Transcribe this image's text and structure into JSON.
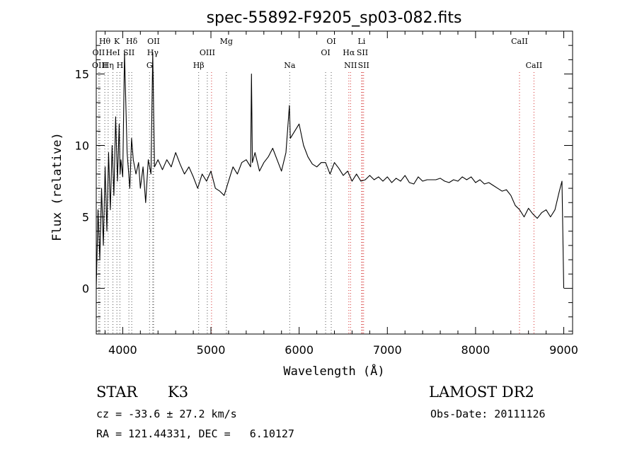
{
  "chart_data": {
    "type": "line",
    "title": "spec-55892-F9205_sp03-082.fits",
    "xlabel": "Wavelength (Å)",
    "ylabel": "Flux (relative)",
    "xlim": [
      3700,
      9100
    ],
    "ylim": [
      -3.2,
      18.0
    ],
    "xticks": [
      4000,
      5000,
      6000,
      7000,
      8000,
      9000
    ],
    "yticks": [
      0,
      5,
      10,
      15
    ],
    "grid": false,
    "series": [
      {
        "x": [
          3700,
          3720,
          3740,
          3760,
          3780,
          3800,
          3820,
          3840,
          3860,
          3880,
          3900,
          3920,
          3940,
          3960,
          3970,
          3980,
          4000,
          4020,
          4050,
          4080,
          4100,
          4120,
          4150,
          4180,
          4200,
          4230,
          4260,
          4290,
          4320,
          4340,
          4360,
          4400,
          4450,
          4500,
          4550,
          4600,
          4650,
          4700,
          4750,
          4800,
          4850,
          4900,
          4950,
          5000,
          5050,
          5100,
          5150,
          5200,
          5250,
          5300,
          5350,
          5400,
          5450,
          5460,
          5470,
          5500,
          5550,
          5600,
          5650,
          5700,
          5750,
          5800,
          5850,
          5890,
          5900,
          5950,
          6000,
          6050,
          6100,
          6150,
          6200,
          6250,
          6300,
          6350,
          6400,
          6450,
          6500,
          6550,
          6600,
          6650,
          6700,
          6750,
          6800,
          6850,
          6900,
          6950,
          7000,
          7050,
          7100,
          7150,
          7200,
          7250,
          7300,
          7350,
          7400,
          7450,
          7500,
          7550,
          7600,
          7650,
          7700,
          7750,
          7800,
          7850,
          7900,
          7950,
          8000,
          8050,
          8100,
          8150,
          8200,
          8250,
          8300,
          8350,
          8400,
          8450,
          8500,
          8550,
          8600,
          8650,
          8700,
          8750,
          8800,
          8850,
          8900,
          8950,
          8980,
          9000
        ],
        "y": [
          0.0,
          5.5,
          2.0,
          7.0,
          3.0,
          8.5,
          4.0,
          9.5,
          5.5,
          10.0,
          6.5,
          12.0,
          7.5,
          11.5,
          8.0,
          9.0,
          7.8,
          16.5,
          9.5,
          7.0,
          10.5,
          9.0,
          8.0,
          8.8,
          7.0,
          8.5,
          6.0,
          9.0,
          8.0,
          16.5,
          8.5,
          9.0,
          8.3,
          9.0,
          8.5,
          9.5,
          8.7,
          8.0,
          8.5,
          7.8,
          7.0,
          8.0,
          7.5,
          8.2,
          7.0,
          6.8,
          6.5,
          7.5,
          8.5,
          8.0,
          8.8,
          9.0,
          8.5,
          15.0,
          8.8,
          9.5,
          8.2,
          8.8,
          9.2,
          9.8,
          9.0,
          8.2,
          9.5,
          12.8,
          10.5,
          11.0,
          11.5,
          10.0,
          9.2,
          8.7,
          8.5,
          8.8,
          8.8,
          8.0,
          8.8,
          8.4,
          7.9,
          8.2,
          7.5,
          8.0,
          7.5,
          7.6,
          7.9,
          7.6,
          7.8,
          7.5,
          7.8,
          7.4,
          7.7,
          7.5,
          7.9,
          7.4,
          7.3,
          7.8,
          7.5,
          7.6,
          7.6,
          7.6,
          7.7,
          7.5,
          7.4,
          7.6,
          7.5,
          7.8,
          7.6,
          7.8,
          7.4,
          7.6,
          7.3,
          7.4,
          7.2,
          7.0,
          6.8,
          6.9,
          6.5,
          5.8,
          5.5,
          5.0,
          5.6,
          5.2,
          4.9,
          5.3,
          5.5,
          5.0,
          5.5,
          6.8,
          7.5,
          0.0
        ]
      }
    ],
    "annotations": [
      {
        "label": "Hθ",
        "x": 3797,
        "row": 1
      },
      {
        "label": "K",
        "x": 3934,
        "row": 1
      },
      {
        "label": "Hδ",
        "x": 4102,
        "row": 1
      },
      {
        "label": "OII",
        "x": 4350,
        "row": 1
      },
      {
        "label": "Mg",
        "x": 5175,
        "row": 1
      },
      {
        "label": "OI",
        "x": 6364,
        "row": 1
      },
      {
        "label": "Li",
        "x": 6708,
        "row": 1
      },
      {
        "label": "CaII",
        "x": 8498,
        "row": 1
      },
      {
        "label": "OII",
        "x": 3727,
        "row": 2
      },
      {
        "label": "HeI",
        "x": 3889,
        "row": 2
      },
      {
        "label": "SII",
        "x": 4070,
        "row": 2
      },
      {
        "label": "Hγ",
        "x": 4341,
        "row": 2
      },
      {
        "label": "OIII",
        "x": 4959,
        "row": 2
      },
      {
        "label": "OI",
        "x": 6300,
        "row": 2
      },
      {
        "label": "Hα",
        "x": 6563,
        "row": 2
      },
      {
        "label": "SII",
        "x": 6717,
        "row": 2
      },
      {
        "label": "OIII",
        "x": 3740,
        "row": 3
      },
      {
        "label": "Hη",
        "x": 3835,
        "row": 3
      },
      {
        "label": "H",
        "x": 3968,
        "row": 3
      },
      {
        "label": "G",
        "x": 4304,
        "row": 3
      },
      {
        "label": "Hβ",
        "x": 4861,
        "row": 3
      },
      {
        "label": "Na",
        "x": 5893,
        "row": 3
      },
      {
        "label": "NII",
        "x": 6583,
        "row": 3
      },
      {
        "label": "SII",
        "x": 6731,
        "row": 3
      },
      {
        "label": "CaII",
        "x": 8662,
        "row": 3
      }
    ],
    "lines_dark": [
      3727,
      3740,
      3797,
      3835,
      3889,
      3934,
      3968,
      4070,
      4102,
      4304,
      4341,
      4350,
      4861,
      4959,
      5175,
      5893,
      6300,
      6364
    ],
    "lines_red": [
      5007,
      6563,
      6583,
      6708,
      6717,
      6731,
      8498,
      8662
    ],
    "colors": {
      "axis": "#000000",
      "spectrum": "#000000",
      "emission_line": "#d43030",
      "absorption_line": "#555555"
    }
  },
  "info": {
    "class_label": "STAR",
    "subclass": "K3",
    "survey": "LAMOST DR2",
    "cz": "cz = -33.6 ± 27.2 km/s",
    "obs_date": "Obs-Date: 20111126",
    "radec": "RA = 121.44331, DEC =   6.10127"
  }
}
